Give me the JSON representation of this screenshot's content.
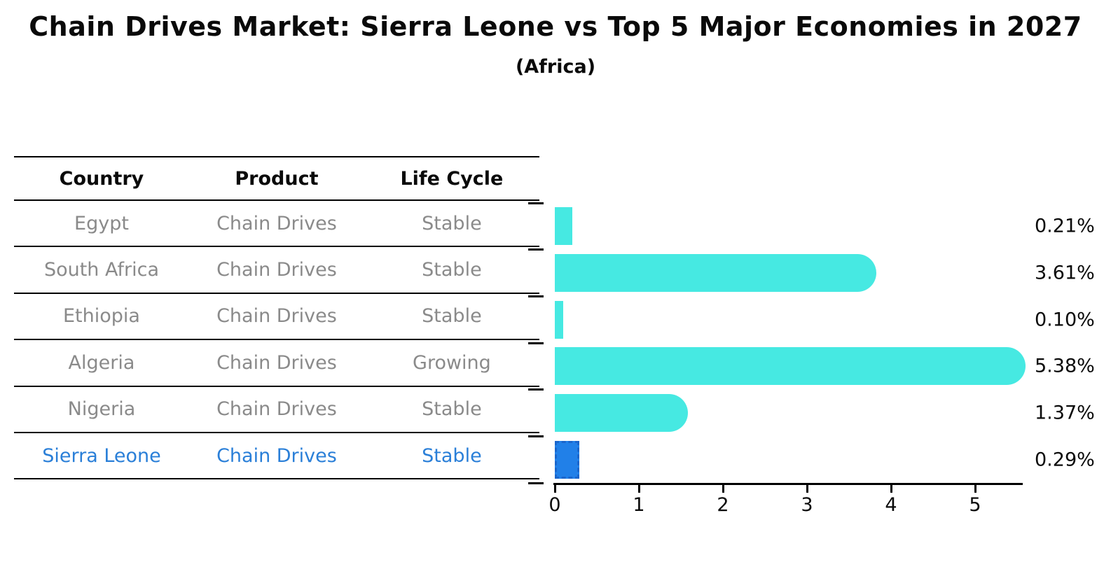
{
  "title": "Chain Drives Market: Sierra Leone vs Top 5 Major Economies in 2027",
  "subtitle": "(Africa)",
  "table": {
    "headers": [
      "Country",
      "Product",
      "Life Cycle"
    ],
    "rows": [
      {
        "country": "Egypt",
        "product": "Chain Drives",
        "life_cycle": "Stable",
        "highlight": false
      },
      {
        "country": "South Africa",
        "product": "Chain Drives",
        "life_cycle": "Stable",
        "highlight": false
      },
      {
        "country": "Ethiopia",
        "product": "Chain Drives",
        "life_cycle": "Stable",
        "highlight": false
      },
      {
        "country": "Algeria",
        "product": "Chain Drives",
        "life_cycle": "Growing",
        "highlight": false
      },
      {
        "country": "Nigeria",
        "product": "Chain Drives",
        "life_cycle": "Stable",
        "highlight": false
      },
      {
        "country": "Sierra Leone",
        "product": "Chain Drives",
        "life_cycle": "Stable",
        "highlight": true
      }
    ]
  },
  "chart_data": {
    "type": "bar",
    "orientation": "horizontal",
    "title": "Chain Drives Market: Sierra Leone vs Top 5 Major Economies in 2027",
    "subtitle": "(Africa)",
    "categories": [
      "Egypt",
      "South Africa",
      "Ethiopia",
      "Algeria",
      "Nigeria",
      "Sierra Leone"
    ],
    "values": [
      0.21,
      3.61,
      0.1,
      5.38,
      1.37,
      0.29
    ],
    "value_labels": [
      "0.21%",
      "3.61%",
      "0.10%",
      "5.38%",
      "1.37%",
      "0.29%"
    ],
    "x_ticks": [
      "0",
      "1",
      "2",
      "3",
      "4",
      "5"
    ],
    "xlim": [
      0,
      5.6
    ],
    "xlabel": "",
    "ylabel": "",
    "grid": false,
    "legend": null,
    "highlight_index": 5,
    "colors": {
      "bar": "#46e9e2",
      "highlight_bar": "#2180e8",
      "highlight_border": "#1a66cc",
      "highlight_text": "#2a7fd8",
      "table_text": "#8a8a8a",
      "axis": "#000000",
      "text": "#0a0a0a"
    }
  }
}
